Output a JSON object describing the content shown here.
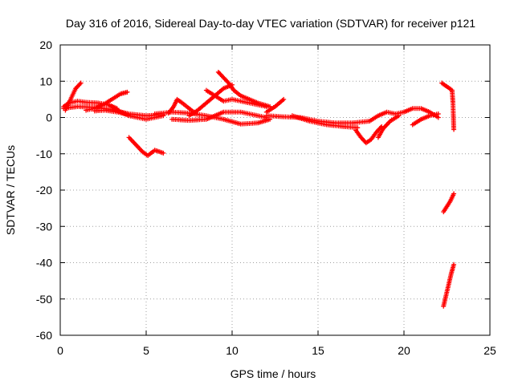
{
  "chart_data": {
    "type": "scatter",
    "title": "Day 316 of 2016, Sidereal Day-to-day VTEC variation (SDTVAR) for receiver p121",
    "xlabel": "GPS time / hours",
    "ylabel": "SDTVAR / TECUs",
    "xlim": [
      0,
      25
    ],
    "ylim": [
      -60,
      20
    ],
    "xticks": [
      0,
      5,
      10,
      15,
      20,
      25
    ],
    "yticks": [
      -60,
      -50,
      -40,
      -30,
      -20,
      -10,
      0,
      10,
      20
    ],
    "grid": true,
    "marker": "plus",
    "color": "#ff0000",
    "tracks": [
      {
        "points": [
          [
            0.2,
            2.5
          ],
          [
            1,
            3
          ],
          [
            2,
            2.8
          ],
          [
            3,
            2.2
          ],
          [
            4,
            1
          ],
          [
            5,
            0.5
          ],
          [
            6,
            0.8
          ]
        ]
      },
      {
        "points": [
          [
            0.2,
            3
          ],
          [
            0.5,
            4
          ],
          [
            1,
            4.5
          ],
          [
            1.5,
            4.2
          ],
          [
            2.2,
            4
          ],
          [
            2.8,
            3.5
          ],
          [
            3.3,
            2.5
          ]
        ]
      },
      {
        "points": [
          [
            0.3,
            2
          ],
          [
            0.6,
            5
          ],
          [
            0.9,
            8
          ],
          [
            1.2,
            9.5
          ]
        ]
      },
      {
        "points": [
          [
            1.5,
            2
          ],
          [
            2,
            2.5
          ],
          [
            2.5,
            3.5
          ],
          [
            3,
            5
          ],
          [
            3.5,
            6.5
          ],
          [
            3.9,
            7
          ]
        ]
      },
      {
        "points": [
          [
            2,
            1.8
          ],
          [
            2.6,
            2
          ],
          [
            3.3,
            1.5
          ],
          [
            4,
            0.8
          ]
        ]
      },
      {
        "points": [
          [
            3,
            3
          ],
          [
            3.5,
            1.5
          ],
          [
            4,
            0.5
          ],
          [
            5,
            -0.5
          ],
          [
            6,
            0.5
          ]
        ]
      },
      {
        "points": [
          [
            4,
            -5.5
          ],
          [
            4.4,
            -7.5
          ],
          [
            4.8,
            -9.5
          ],
          [
            5.1,
            -10.5
          ],
          [
            5.5,
            -9
          ],
          [
            6,
            -9.8
          ]
        ]
      },
      {
        "points": [
          [
            5.5,
            1
          ],
          [
            6.5,
            1.5
          ],
          [
            7.5,
            1.2
          ],
          [
            8.5,
            0.5
          ],
          [
            9.5,
            -0.5
          ],
          [
            10.5,
            -1.8
          ],
          [
            11.5,
            -1.5
          ],
          [
            12.2,
            -0.5
          ]
        ]
      },
      {
        "points": [
          [
            6.3,
            1.2
          ],
          [
            6.6,
            3
          ],
          [
            6.8,
            5
          ],
          [
            7.1,
            4
          ],
          [
            7.5,
            2.5
          ],
          [
            7.9,
            1
          ]
        ]
      },
      {
        "points": [
          [
            6.5,
            -0.5
          ],
          [
            7.5,
            -0.8
          ],
          [
            8.5,
            -0.5
          ],
          [
            9,
            0.5
          ],
          [
            9.5,
            1.5
          ],
          [
            10.5,
            1.5
          ],
          [
            11.5,
            0.5
          ],
          [
            12,
            0
          ]
        ]
      },
      {
        "points": [
          [
            7.5,
            0.5
          ],
          [
            8,
            2
          ],
          [
            8.5,
            4
          ],
          [
            9,
            6
          ],
          [
            9.5,
            8
          ],
          [
            10,
            9
          ]
        ]
      },
      {
        "points": [
          [
            8.5,
            7.5
          ],
          [
            9,
            6
          ],
          [
            9.5,
            4.5
          ],
          [
            10,
            5
          ],
          [
            10.5,
            4.5
          ],
          [
            11,
            4
          ],
          [
            11.5,
            3.5
          ],
          [
            12,
            3
          ]
        ]
      },
      {
        "points": [
          [
            9.2,
            12.5
          ],
          [
            9.5,
            11
          ],
          [
            9.8,
            9.5
          ],
          [
            10.1,
            7.5
          ],
          [
            10.5,
            6
          ],
          [
            11,
            5
          ],
          [
            11.5,
            4
          ],
          [
            12.2,
            3
          ]
        ]
      },
      {
        "points": [
          [
            12,
            1.5
          ],
          [
            12.5,
            3
          ],
          [
            13,
            5
          ]
        ]
      },
      {
        "points": [
          [
            12,
            0.5
          ],
          [
            13,
            0.2
          ],
          [
            14,
            0
          ],
          [
            15,
            -1
          ],
          [
            16,
            -1.5
          ],
          [
            17,
            -1.5
          ],
          [
            18,
            -1
          ]
        ]
      },
      {
        "points": [
          [
            13.5,
            0.5
          ],
          [
            14.5,
            -1
          ],
          [
            15.5,
            -2
          ],
          [
            16.5,
            -2.5
          ],
          [
            17.3,
            -2.8
          ]
        ]
      },
      {
        "points": [
          [
            17.2,
            -3.5
          ],
          [
            17.5,
            -5.5
          ],
          [
            17.8,
            -7
          ],
          [
            18.1,
            -6
          ],
          [
            18.4,
            -4
          ],
          [
            18.7,
            -2.5
          ]
        ]
      },
      {
        "points": [
          [
            18,
            -1
          ],
          [
            18.5,
            0.5
          ],
          [
            19,
            1.5
          ],
          [
            19.5,
            1
          ],
          [
            20,
            1.5
          ],
          [
            20.5,
            2.5
          ],
          [
            21,
            2.5
          ],
          [
            21.5,
            1.5
          ],
          [
            22,
            0
          ]
        ]
      },
      {
        "points": [
          [
            18.5,
            -5.5
          ],
          [
            18.8,
            -3
          ],
          [
            19.2,
            -1
          ],
          [
            19.7,
            0.5
          ]
        ]
      },
      {
        "points": [
          [
            20.5,
            -2
          ],
          [
            21,
            -0.5
          ],
          [
            21.5,
            0.5
          ],
          [
            22,
            1
          ]
        ]
      },
      {
        "points": [
          [
            22.2,
            9.5
          ],
          [
            22.5,
            8.5
          ],
          [
            22.8,
            7.5
          ],
          [
            22.85,
            4
          ],
          [
            22.9,
            -3.3
          ]
        ]
      },
      {
        "points": [
          [
            22.3,
            -26
          ],
          [
            22.5,
            -24.5
          ],
          [
            22.7,
            -23
          ],
          [
            22.9,
            -21
          ]
        ]
      },
      {
        "points": [
          [
            22.3,
            -52
          ],
          [
            22.45,
            -49
          ],
          [
            22.6,
            -46
          ],
          [
            22.75,
            -43
          ],
          [
            22.9,
            -40.5
          ]
        ]
      }
    ]
  }
}
